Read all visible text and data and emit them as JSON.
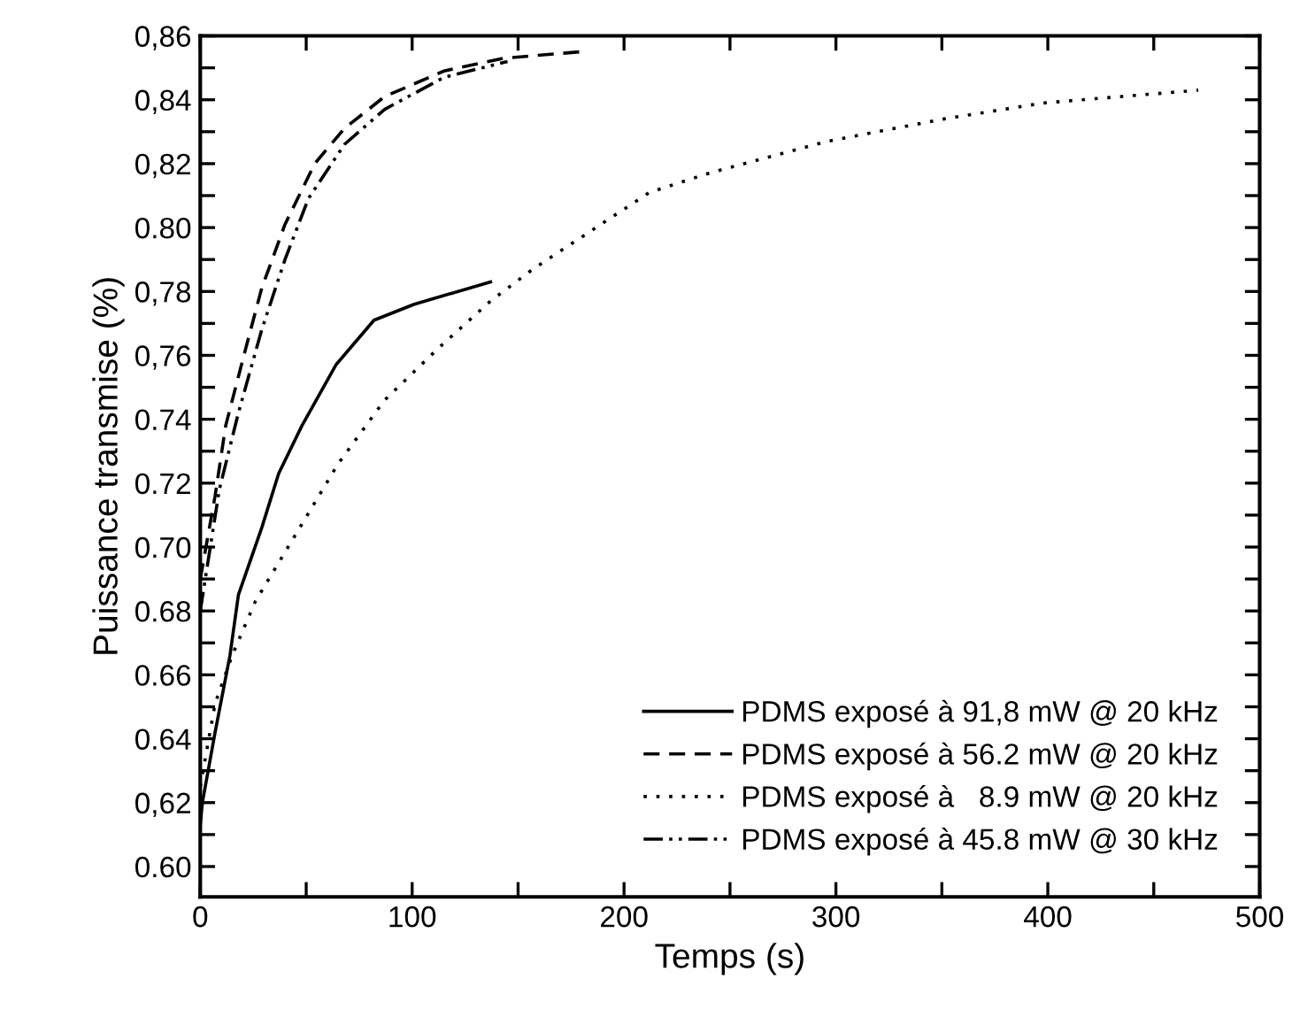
{
  "chart_data": {
    "type": "line",
    "xlabel": "Temps (s)",
    "ylabel": "Puissance transmise (%)",
    "xlim": [
      0,
      500
    ],
    "ylim": [
      0.5905,
      0.86
    ],
    "xticks": [
      0,
      {
        "value": 50,
        "label": null
      },
      100,
      {
        "value": 150,
        "label": null
      },
      200,
      {
        "value": 250,
        "label": null
      },
      300,
      {
        "value": 350,
        "label": null
      },
      400,
      {
        "value": 450,
        "label": null
      },
      500
    ],
    "yticks": [
      {
        "value": 0.6,
        "label": "0.60"
      },
      {
        "value": 0.61,
        "label": null
      },
      {
        "value": 0.62,
        "label": "0,62"
      },
      {
        "value": 0.63,
        "label": null
      },
      {
        "value": 0.64,
        "label": "0.64"
      },
      {
        "value": 0.65,
        "label": null
      },
      {
        "value": 0.66,
        "label": "0.66"
      },
      {
        "value": 0.67,
        "label": null
      },
      {
        "value": 0.68,
        "label": "0.68"
      },
      {
        "value": 0.69,
        "label": null
      },
      {
        "value": 0.7,
        "label": "0.70"
      },
      {
        "value": 0.71,
        "label": null
      },
      {
        "value": 0.72,
        "label": "0.72"
      },
      {
        "value": 0.73,
        "label": null
      },
      {
        "value": 0.74,
        "label": "0.74"
      },
      {
        "value": 0.75,
        "label": null
      },
      {
        "value": 0.76,
        "label": "0,76"
      },
      {
        "value": 0.77,
        "label": null
      },
      {
        "value": 0.78,
        "label": "0,78"
      },
      {
        "value": 0.79,
        "label": null
      },
      {
        "value": 0.8,
        "label": "0.80"
      },
      {
        "value": 0.81,
        "label": null
      },
      {
        "value": 0.82,
        "label": "0,82"
      },
      {
        "value": 0.83,
        "label": null
      },
      {
        "value": 0.84,
        "label": "0,84"
      },
      {
        "value": 0.85,
        "label": null
      },
      {
        "value": 0.86,
        "label": "0,86"
      }
    ],
    "grid": false,
    "legend": "bottom right",
    "marker": "none",
    "series": [
      {
        "name": "PDMS exposé à 91,8 mW @ 20 kHz",
        "color": "#000000",
        "line_style": "solid",
        "x": [
          0,
          1,
          7,
          14,
          18,
          29,
          37,
          48,
          64,
          82,
          101,
          137
        ],
        "values": [
          0.613,
          0.62,
          0.642,
          0.666,
          0.685,
          0.706,
          0.723,
          0.738,
          0.757,
          0.771,
          0.776,
          0.783
        ]
      },
      {
        "name": "PDMS exposé à 56.2 mW @ 20 kHz",
        "color": "#000000",
        "line_style": "dashed",
        "x": [
          0,
          7,
          12,
          21,
          29,
          40,
          54,
          68,
          87,
          115,
          143,
          179
        ],
        "values": [
          0.69,
          0.716,
          0.738,
          0.761,
          0.781,
          0.801,
          0.82,
          0.831,
          0.841,
          0.849,
          0.853,
          0.855
        ]
      },
      {
        "name": "PDMS exposé à   8.9 mW @ 20 kHz",
        "color": "#000000",
        "line_style": "dotted",
        "x": [
          0,
          7,
          15,
          26,
          46,
          65,
          87,
          112,
          137,
          157,
          212,
          240,
          296,
          351,
          398,
          471
        ],
        "values": [
          0.625,
          0.651,
          0.666,
          0.683,
          0.705,
          0.726,
          0.746,
          0.762,
          0.777,
          0.787,
          0.811,
          0.817,
          0.827,
          0.834,
          0.839,
          0.843
        ]
      },
      {
        "name": "PDMS exposé à 45.8 mW @ 30 kHz",
        "color": "#000000",
        "line_style": "dashdotdot",
        "x": [
          0,
          9,
          18,
          29,
          40,
          51,
          68,
          87,
          115,
          145
        ],
        "values": [
          0.68,
          0.718,
          0.742,
          0.768,
          0.79,
          0.809,
          0.826,
          0.837,
          0.847,
          0.852
        ]
      }
    ]
  }
}
